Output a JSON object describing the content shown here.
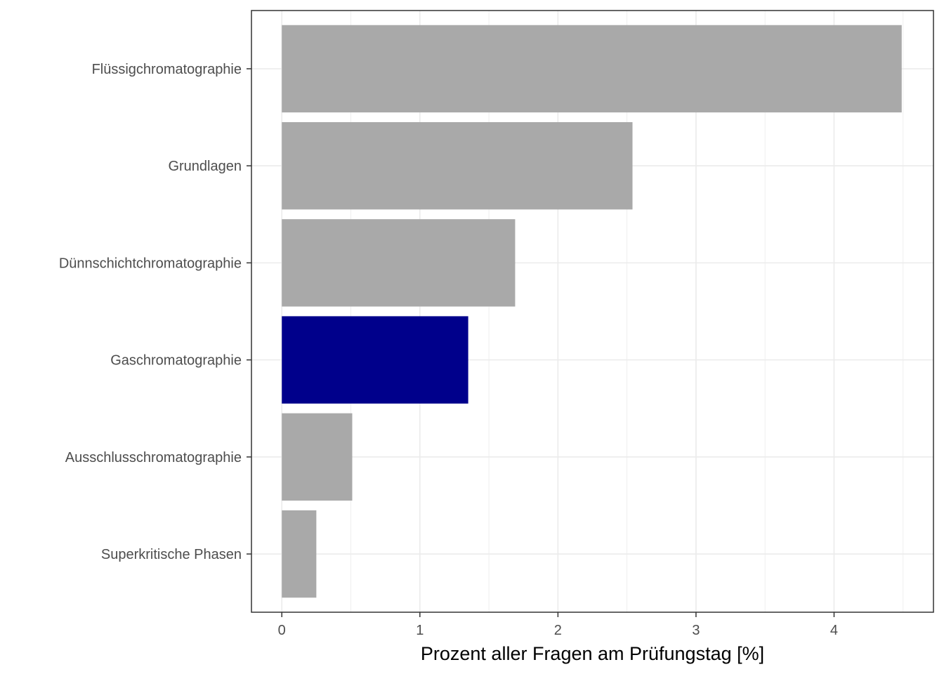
{
  "chart_data": {
    "type": "bar",
    "orientation": "horizontal",
    "categories": [
      "Flüssigchromatographie",
      "Grundlagen",
      "Dünnschichtchromatographie",
      "Gaschromatographie",
      "Ausschlusschromatographie",
      "Superkritische Phasen"
    ],
    "values": [
      4.49,
      2.54,
      1.69,
      1.35,
      0.51,
      0.25
    ],
    "highlight": "Gaschromatographie",
    "colors": {
      "default": "#a9a9a9",
      "highlight": "#00008b",
      "grid": "#ebebeb",
      "panel_border": "#333333"
    },
    "xlabel": "Prozent aller Fragen am Prüfungstag [%]",
    "ylabel": "",
    "xticks": [
      0,
      1,
      2,
      3,
      4
    ],
    "xlim": [
      -0.22,
      4.72
    ],
    "grid": true,
    "legend": "none"
  }
}
